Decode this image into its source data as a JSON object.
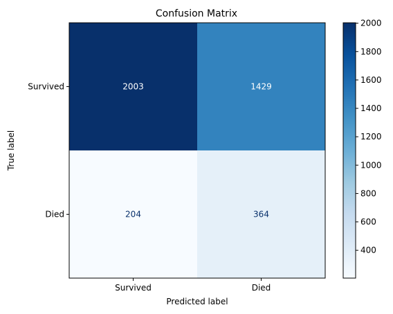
{
  "chart_data": {
    "type": "heatmap",
    "title": "Confusion Matrix",
    "xlabel": "Predicted label",
    "ylabel": "True label",
    "x_categories": [
      "Survived",
      "Died"
    ],
    "y_categories": [
      "Survived",
      "Died"
    ],
    "values": [
      [
        2003,
        1429
      ],
      [
        204,
        364
      ]
    ],
    "colormap": "Blues",
    "colorbar": {
      "min": 204,
      "max": 2003,
      "ticks": [
        400,
        600,
        800,
        1000,
        1200,
        1400,
        1600,
        1800,
        2000
      ]
    },
    "grid": false,
    "colors": {
      "low": "#f7fbff",
      "high": "#08306b",
      "text_light": "#ffffff",
      "text_dark": "#08306b"
    }
  }
}
